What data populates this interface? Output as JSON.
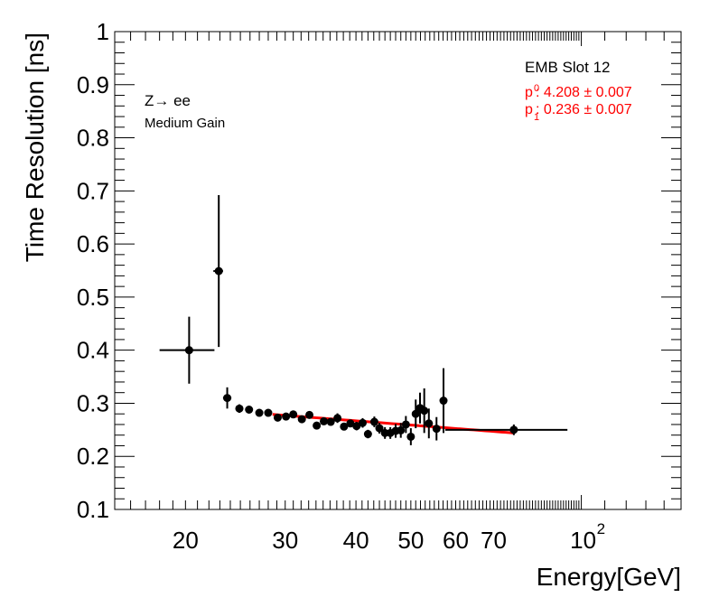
{
  "chart_data": {
    "type": "scatter",
    "title": "",
    "xlabel": "Energy[GeV]",
    "ylabel": "Time Resolution [ns]",
    "xscale": "log",
    "xlim": [
      15,
      150
    ],
    "ylim": [
      0.1,
      1.0
    ],
    "x_tick_labels": [
      {
        "value": 20,
        "label": "20"
      },
      {
        "value": 30,
        "label": "30"
      },
      {
        "value": 40,
        "label": "40"
      },
      {
        "value": 50,
        "label": "50"
      },
      {
        "value": 60,
        "label": "60"
      },
      {
        "value": 70,
        "label": "70"
      }
    ],
    "x_tick_100": {
      "value": 100,
      "base": "10",
      "exponent": "2"
    },
    "y_tick_labels": [
      {
        "value": 0.1,
        "label": "0.1"
      },
      {
        "value": 0.2,
        "label": "0.2"
      },
      {
        "value": 0.3,
        "label": "0.3"
      },
      {
        "value": 0.4,
        "label": "0.4"
      },
      {
        "value": 0.5,
        "label": "0.5"
      },
      {
        "value": 0.6,
        "label": "0.6"
      },
      {
        "value": 0.7,
        "label": "0.7"
      },
      {
        "value": 0.8,
        "label": "0.8"
      },
      {
        "value": 0.9,
        "label": "0.9"
      },
      {
        "value": 1.0,
        "label": "1"
      }
    ],
    "annotations": {
      "process": "Z→ ee",
      "gain": "Medium Gain",
      "slot": "EMB Slot 12",
      "p0_label": "p",
      "p0_sub": "0",
      "p0_value": ": 4.208 ± 0.007",
      "p1_label": "p",
      "p1_sub": "1",
      "p1_value": ": 0.236 ± 0.007"
    },
    "fit": {
      "color": "#ff0000",
      "p0": 4.208,
      "p1": 0.236,
      "x_range": [
        28.5,
        76
      ],
      "y_start": 0.279,
      "y_end": 0.244
    },
    "series": [
      {
        "name": "data",
        "color": "#000000",
        "points": [
          {
            "x": 20.3,
            "y": 0.4,
            "xlo": 18.0,
            "xhi": 22.5,
            "err": 0.063
          },
          {
            "x": 22.9,
            "y": 0.549,
            "xlo": 22.4,
            "xhi": 23.3,
            "err": 0.143
          },
          {
            "x": 23.7,
            "y": 0.31,
            "xlo": 23.3,
            "xhi": 24.1,
            "err": 0.02
          },
          {
            "x": 24.9,
            "y": 0.29,
            "xlo": 24.5,
            "xhi": 25.3,
            "err": 0.008
          },
          {
            "x": 25.9,
            "y": 0.288,
            "xlo": 25.5,
            "xhi": 26.3,
            "err": 0.007
          },
          {
            "x": 27.0,
            "y": 0.282,
            "xlo": 26.6,
            "xhi": 27.4,
            "err": 0.007
          },
          {
            "x": 28.0,
            "y": 0.282,
            "xlo": 27.6,
            "xhi": 28.4,
            "err": 0.006
          },
          {
            "x": 29.1,
            "y": 0.273,
            "xlo": 28.7,
            "xhi": 29.5,
            "err": 0.006
          },
          {
            "x": 30.1,
            "y": 0.275,
            "xlo": 29.7,
            "xhi": 30.5,
            "err": 0.006
          },
          {
            "x": 31.0,
            "y": 0.279,
            "xlo": 30.6,
            "xhi": 31.4,
            "err": 0.007
          },
          {
            "x": 32.1,
            "y": 0.27,
            "xlo": 31.7,
            "xhi": 32.5,
            "err": 0.006
          },
          {
            "x": 33.1,
            "y": 0.278,
            "xlo": 32.7,
            "xhi": 33.5,
            "err": 0.007
          },
          {
            "x": 34.1,
            "y": 0.258,
            "xlo": 33.7,
            "xhi": 34.5,
            "err": 0.007
          },
          {
            "x": 35.1,
            "y": 0.266,
            "xlo": 34.7,
            "xhi": 35.5,
            "err": 0.007
          },
          {
            "x": 36.1,
            "y": 0.265,
            "xlo": 35.7,
            "xhi": 36.5,
            "err": 0.007
          },
          {
            "x": 37.1,
            "y": 0.272,
            "xlo": 36.7,
            "xhi": 37.5,
            "err": 0.009
          },
          {
            "x": 38.1,
            "y": 0.256,
            "xlo": 37.7,
            "xhi": 38.5,
            "err": 0.007
          },
          {
            "x": 39.1,
            "y": 0.262,
            "xlo": 38.7,
            "xhi": 39.5,
            "err": 0.007
          },
          {
            "x": 40.1,
            "y": 0.257,
            "xlo": 39.7,
            "xhi": 40.5,
            "err": 0.008
          },
          {
            "x": 41.1,
            "y": 0.263,
            "xlo": 40.7,
            "xhi": 41.5,
            "err": 0.009
          },
          {
            "x": 42.0,
            "y": 0.242,
            "xlo": 41.6,
            "xhi": 42.4,
            "err": 0.008
          },
          {
            "x": 43.1,
            "y": 0.265,
            "xlo": 42.7,
            "xhi": 43.5,
            "err": 0.01
          },
          {
            "x": 44.0,
            "y": 0.253,
            "xlo": 43.6,
            "xhi": 44.4,
            "err": 0.01
          },
          {
            "x": 45.0,
            "y": 0.244,
            "xlo": 44.6,
            "xhi": 45.4,
            "err": 0.011
          },
          {
            "x": 46.0,
            "y": 0.244,
            "xlo": 45.6,
            "xhi": 46.4,
            "err": 0.011
          },
          {
            "x": 47.0,
            "y": 0.248,
            "xlo": 46.6,
            "xhi": 47.4,
            "err": 0.013
          },
          {
            "x": 48.0,
            "y": 0.249,
            "xlo": 47.6,
            "xhi": 48.4,
            "err": 0.014
          },
          {
            "x": 49.0,
            "y": 0.26,
            "xlo": 48.6,
            "xhi": 49.4,
            "err": 0.016
          },
          {
            "x": 50.0,
            "y": 0.237,
            "xlo": 49.6,
            "xhi": 50.4,
            "err": 0.016
          },
          {
            "x": 51.0,
            "y": 0.28,
            "xlo": 50.6,
            "xhi": 51.4,
            "err": 0.027
          },
          {
            "x": 51.9,
            "y": 0.291,
            "xlo": 51.5,
            "xhi": 52.3,
            "err": 0.029
          },
          {
            "x": 52.8,
            "y": 0.286,
            "xlo": 52.4,
            "xhi": 53.2,
            "err": 0.042
          },
          {
            "x": 53.8,
            "y": 0.262,
            "xlo": 53.4,
            "xhi": 54.2,
            "err": 0.028
          },
          {
            "x": 55.5,
            "y": 0.252,
            "xlo": 55.1,
            "xhi": 55.9,
            "err": 0.022
          },
          {
            "x": 57.1,
            "y": 0.305,
            "xlo": 56.7,
            "xhi": 57.5,
            "err": 0.061
          },
          {
            "x": 76.0,
            "y": 0.25,
            "xlo": 57.5,
            "xhi": 94.5,
            "err": 0.01
          }
        ]
      }
    ]
  }
}
